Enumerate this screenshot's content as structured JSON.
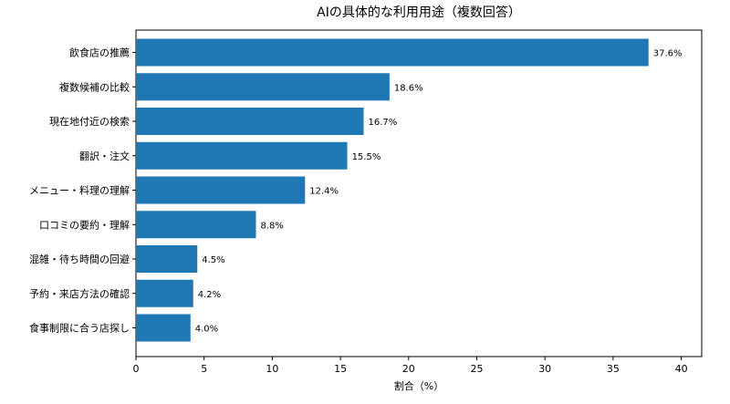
{
  "chart_data": {
    "type": "bar",
    "orientation": "horizontal",
    "title": "AIの具体的な利用用途（複数回答）",
    "xlabel": "割合（%）",
    "ylabel": "",
    "xlim": [
      0,
      41.5
    ],
    "xticks": [
      0,
      5,
      10,
      15,
      20,
      25,
      30,
      35,
      40
    ],
    "categories": [
      "飲食店の推薦",
      "複数候補の比較",
      "現在地付近の検索",
      "翻訳・注文",
      "メニュー・料理の理解",
      "口コミの要約・理解",
      "混雑・待ち時間の回避",
      "予約・来店方法の確認",
      "食事制限に合う店探し"
    ],
    "values": [
      37.6,
      18.6,
      16.7,
      15.5,
      12.4,
      8.8,
      4.5,
      4.2,
      4.0
    ],
    "value_labels": [
      "37.6%",
      "18.6%",
      "16.7%",
      "15.5%",
      "12.4%",
      "8.8%",
      "4.5%",
      "4.2%",
      "4.0%"
    ],
    "bar_color": "#1f77b4",
    "grid": false,
    "legend": "none"
  }
}
